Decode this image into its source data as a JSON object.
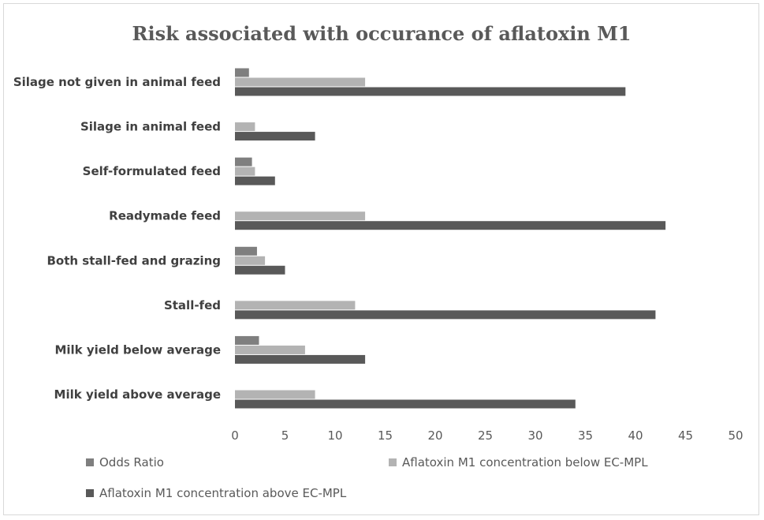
{
  "chart_data": {
    "type": "bar",
    "orientation": "horizontal",
    "title": "Risk associated with occurance of aflatoxin M1",
    "categories": [
      "Silage not given in animal feed",
      "Silage in animal feed",
      "Self-formulated feed",
      "Readymade feed",
      "Both stall-fed and grazing",
      "Stall-fed",
      "Milk yield below average",
      "Milk yield above average"
    ],
    "series": [
      {
        "name": "Odds Ratio",
        "color": "#7f7f7f",
        "values": [
          1.4,
          null,
          1.7,
          null,
          2.2,
          null,
          2.4,
          null
        ]
      },
      {
        "name": "Aflatoxin M1 concentration below EC-MPL",
        "color": "#b3b3b3",
        "values": [
          13,
          2,
          2,
          13,
          3,
          12,
          7,
          8
        ]
      },
      {
        "name": "Aflatoxin M1 concentration above EC-MPL",
        "color": "#595959",
        "values": [
          39,
          8,
          4,
          43,
          5,
          42,
          13,
          34
        ]
      }
    ],
    "xlim": [
      0,
      50
    ],
    "xticks": [
      "0",
      "5",
      "10",
      "15",
      "20",
      "25",
      "30",
      "35",
      "40",
      "45",
      "50"
    ],
    "grid": false,
    "legend_position": "bottom"
  }
}
